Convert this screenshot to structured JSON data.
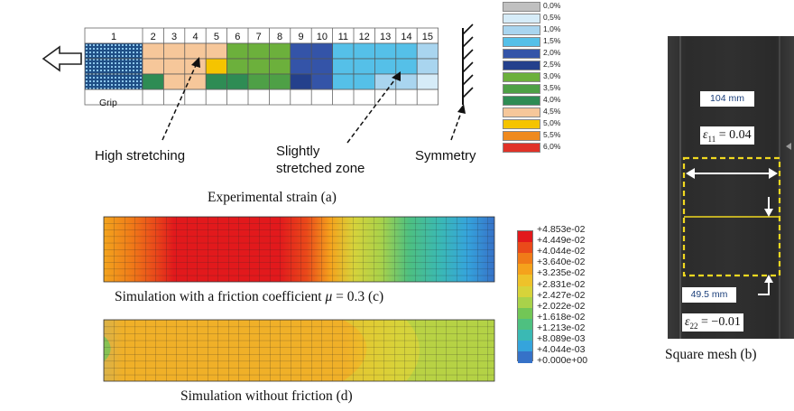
{
  "experimental": {
    "col_numbers": [
      "1",
      "2",
      "3",
      "4",
      "5",
      "6",
      "7",
      "8",
      "9",
      "10",
      "11",
      "12",
      "13",
      "14",
      "15"
    ],
    "grip_label": "Grip",
    "annotation_high": "High stretching",
    "annotation_slight_line1": "Slightly",
    "annotation_slight_line2": "stretched zone",
    "annotation_symmetry": "Symmetry",
    "caption": "Experimental strain (a)",
    "legend": [
      {
        "label": "0,0%",
        "color": "#c0c0c0"
      },
      {
        "label": "0,5%",
        "color": "#d6ecf8"
      },
      {
        "label": "1,0%",
        "color": "#a9d5ef"
      },
      {
        "label": "1,5%",
        "color": "#55c0e8"
      },
      {
        "label": "2,0%",
        "color": "#3454a8"
      },
      {
        "label": "2,5%",
        "color": "#24408c"
      },
      {
        "label": "3,0%",
        "color": "#6cb03c"
      },
      {
        "label": "3,5%",
        "color": "#4ea046"
      },
      {
        "label": "4,0%",
        "color": "#2e8c54"
      },
      {
        "label": "4,5%",
        "color": "#f6c79a"
      },
      {
        "label": "5,0%",
        "color": "#f5c400"
      },
      {
        "label": "5,5%",
        "color": "#ef8a1e"
      },
      {
        "label": "6,0%",
        "color": "#e03228"
      }
    ],
    "grid_rows": [
      [
        "grip",
        "4.5%",
        "4.5%",
        "4.5%",
        "4.5%",
        "3.0%",
        "3.0%",
        "3.0%",
        "2.0%",
        "2.0%",
        "1.5%",
        "1.5%",
        "1.5%",
        "1.5%",
        "1.0%"
      ],
      [
        "grip",
        "4.5%",
        "4.5%",
        "4.5%",
        "5.0%",
        "3.0%",
        "3.0%",
        "3.0%",
        "2.0%",
        "2.0%",
        "1.5%",
        "1.5%",
        "1.5%",
        "1.5%",
        "1.0%"
      ],
      [
        "grip",
        "4.0%",
        "4.5%",
        "4.5%",
        "4.0%",
        "4.0%",
        "3.5%",
        "3.5%",
        "2.5%",
        "2.0%",
        "1.5%",
        "1.5%",
        "1.0%",
        "1.0%",
        "0.5%"
      ]
    ]
  },
  "simulation": {
    "caption_c_prefix": "Simulation with a friction coefficient ",
    "caption_c_mu": "μ",
    "caption_c_suffix": " = 0.3 (c)",
    "caption_d": "Simulation without friction (d)",
    "legend": [
      {
        "label": "+4.853e-02",
        "color": "#e2191c"
      },
      {
        "label": "+4.449e-02",
        "color": "#ea4a1a"
      },
      {
        "label": "+4.044e-02",
        "color": "#f07b18"
      },
      {
        "label": "+3.640e-02",
        "color": "#f5a21c"
      },
      {
        "label": "+3.235e-02",
        "color": "#eec22a"
      },
      {
        "label": "+2.831e-02",
        "color": "#d7d33a"
      },
      {
        "label": "+2.427e-02",
        "color": "#a9d24a"
      },
      {
        "label": "+2.022e-02",
        "color": "#72c656"
      },
      {
        "label": "+1.618e-02",
        "color": "#4ec080"
      },
      {
        "label": "+1.213e-02",
        "color": "#3ab9b4"
      },
      {
        "label": "+8.089e-03",
        "color": "#35a4dc"
      },
      {
        "label": "+4.044e-03",
        "color": "#3672c8"
      },
      {
        "label": "+0.000e+00",
        "color": "#2d3aa6"
      }
    ]
  },
  "photo": {
    "label_104": "104 mm",
    "eps11_sym": "ε",
    "eps11_sub": "11",
    "eps11_val": " = 0.04",
    "label_49": "49.5 mm",
    "eps22_sym": "ε",
    "eps22_sub": "22",
    "eps22_val": " = −0.01",
    "caption": "Square mesh (b)"
  }
}
